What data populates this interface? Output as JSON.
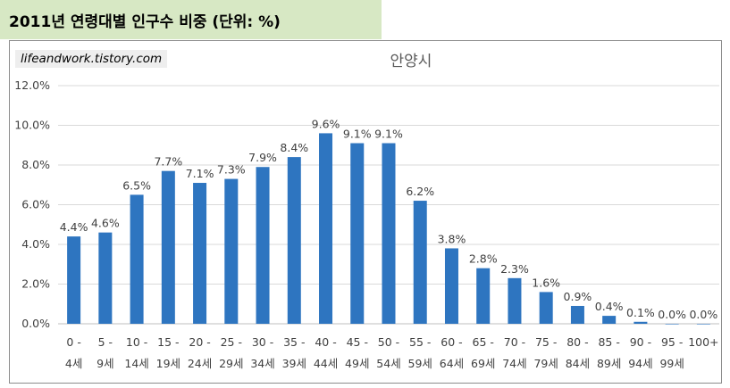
{
  "heading": "2011년 연령대별 인구수 비중 (단위: %)",
  "watermark": "lifeandwork.tistory.com",
  "chart_data": {
    "type": "bar",
    "title": "안양시",
    "xlabel": "",
    "ylabel": "",
    "ylim": [
      0,
      12
    ],
    "y_ticks": [
      "0.0%",
      "2.0%",
      "4.0%",
      "6.0%",
      "8.0%",
      "10.0%",
      "12.0%"
    ],
    "grid": true,
    "bar_color": "#2e75c0",
    "grid_color": "#d9d9d9",
    "categories": [
      [
        "0 -",
        "4세"
      ],
      [
        "5 -",
        "9세"
      ],
      [
        "10 -",
        "14세"
      ],
      [
        "15 -",
        "19세"
      ],
      [
        "20 -",
        "24세"
      ],
      [
        "25 -",
        "29세"
      ],
      [
        "30 -",
        "34세"
      ],
      [
        "35 -",
        "39세"
      ],
      [
        "40 -",
        "44세"
      ],
      [
        "45 -",
        "49세"
      ],
      [
        "50 -",
        "54세"
      ],
      [
        "55 -",
        "59세"
      ],
      [
        "60 -",
        "64세"
      ],
      [
        "65 -",
        "69세"
      ],
      [
        "70 -",
        "74세"
      ],
      [
        "75 -",
        "79세"
      ],
      [
        "80 -",
        "84세"
      ],
      [
        "85 -",
        "89세"
      ],
      [
        "90 -",
        "94세"
      ],
      [
        "95 -",
        "99세"
      ],
      [
        "100+",
        ""
      ]
    ],
    "values": [
      4.4,
      4.6,
      6.5,
      7.7,
      7.1,
      7.3,
      7.9,
      8.4,
      9.6,
      9.1,
      9.1,
      6.2,
      3.8,
      2.8,
      2.3,
      1.6,
      0.9,
      0.4,
      0.1,
      0.0,
      0.0
    ],
    "labels": [
      "4.4%",
      "4.6%",
      "6.5%",
      "7.7%",
      "7.1%",
      "7.3%",
      "7.9%",
      "8.4%",
      "9.6%",
      "9.1%",
      "9.1%",
      "6.2%",
      "3.8%",
      "2.8%",
      "2.3%",
      "1.6%",
      "0.9%",
      "0.4%",
      "0.1%",
      "0.0%",
      "0.0%"
    ]
  }
}
